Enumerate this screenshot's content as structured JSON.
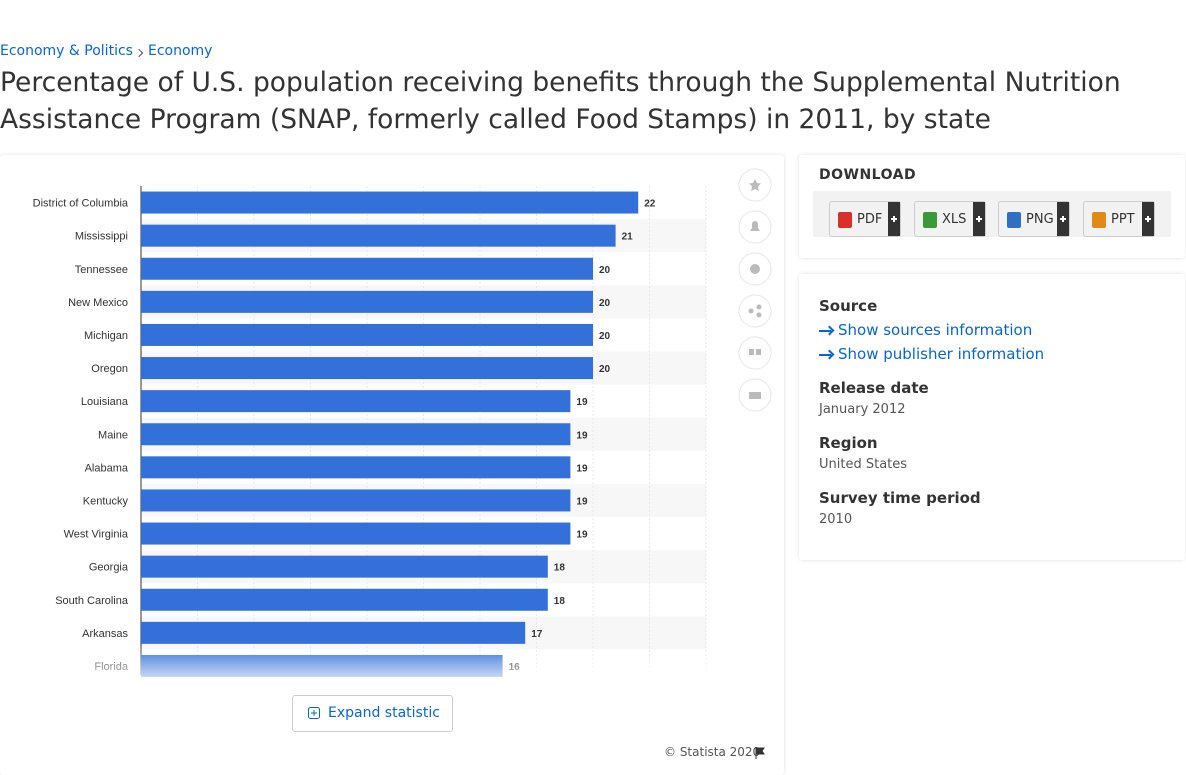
{
  "breadcrumbs": [
    "Economy & Politics",
    "Economy"
  ],
  "title": "Percentage of U.S. population receiving benefits through the Supplemental Nutrition Assistance Program (SNAP, formerly called Food Stamps) in 2011, by state",
  "chart_data": {
    "type": "bar",
    "horizontal": true,
    "color": "#3470da",
    "categories": [
      "District of Columbia",
      "Mississippi",
      "Tennessee",
      "New Mexico",
      "Michigan",
      "Oregon",
      "Louisiana",
      "Maine",
      "Alabama",
      "Kentucky",
      "West Virginia",
      "Georgia",
      "South Carolina",
      "Arkansas",
      "Florida"
    ],
    "values": [
      22,
      21,
      20,
      20,
      20,
      20,
      19,
      19,
      19,
      19,
      19,
      18,
      18,
      17,
      16
    ],
    "xlim": [
      0,
      25
    ],
    "xticks": [
      0,
      2.5,
      5,
      7.5,
      10,
      12.5,
      15,
      17.5,
      20,
      22.5,
      25
    ],
    "grid": true
  },
  "expand_button": "Expand statistic",
  "copyright": "© Statista 2020",
  "download": {
    "heading": "DOWNLOAD",
    "formats": [
      "PDF",
      "XLS",
      "PNG",
      "PPT"
    ]
  },
  "details": {
    "source_heading": "Source",
    "links": [
      "Show sources information",
      "Show publisher information"
    ],
    "items": [
      {
        "label": "Release date",
        "value": "January 2012"
      },
      {
        "label": "Region",
        "value": "United States"
      },
      {
        "label": "Survey time period",
        "value": "2010"
      }
    ]
  }
}
